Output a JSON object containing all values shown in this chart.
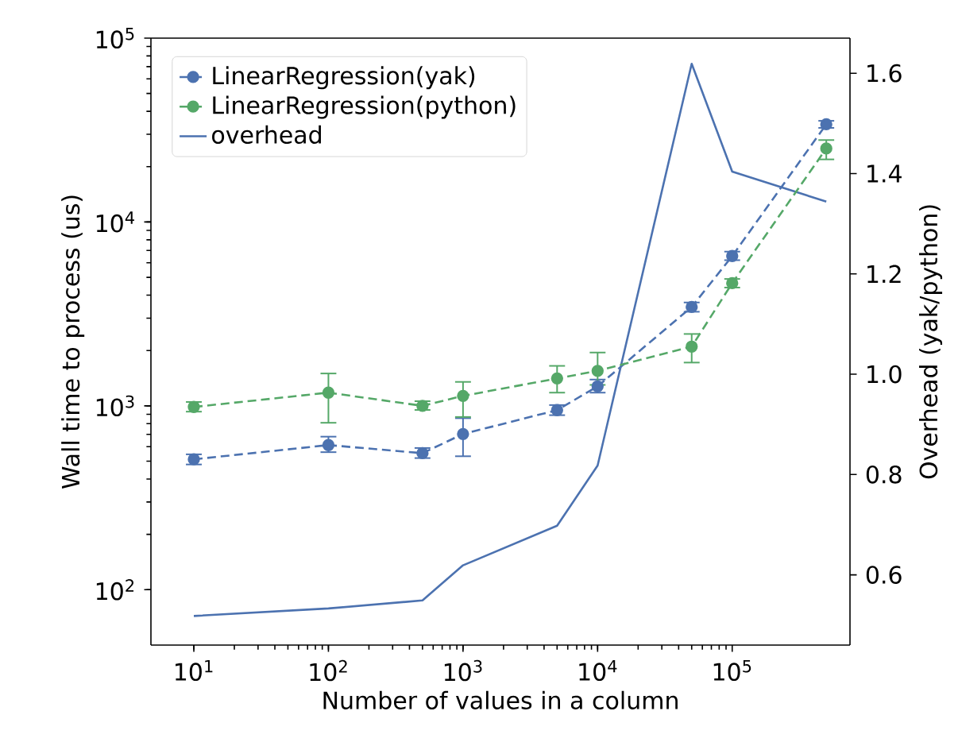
{
  "chart_data": {
    "type": "line",
    "xlabel": "Number of values in a column",
    "ylabel": "Wall time to process (us)",
    "y2label": "Overhead (yak/python)",
    "log": "xy",
    "legend": "top left",
    "xlim": [
      4.8,
      750000
    ],
    "xticks": [
      {
        "value": 10,
        "label": "10$^{1}$"
      },
      {
        "value": 100,
        "label": "10$^{2}$"
      },
      {
        "value": 1000,
        "label": "10$^{3}$"
      },
      {
        "value": 10000,
        "label": "10$^{4}$"
      },
      {
        "value": 100000,
        "label": "10$^{5}$"
      }
    ],
    "ylim": [
      50,
      100000
    ],
    "yticks": [
      {
        "value": 100,
        "label": "10$^{2}$"
      },
      {
        "value": 1000,
        "label": "10$^{3}$"
      },
      {
        "value": 10000,
        "label": "10$^{4}$"
      },
      {
        "value": 100000,
        "label": "10$^{5}$"
      }
    ],
    "y2lim": [
      0.46,
      1.67
    ],
    "y2ticks": [
      {
        "value": 0.6,
        "label": "0.6"
      },
      {
        "value": 0.8,
        "label": "0.8"
      },
      {
        "value": 1.0,
        "label": "1.0"
      },
      {
        "value": 1.2,
        "label": "1.2"
      },
      {
        "value": 1.4,
        "label": "1.4"
      },
      {
        "value": 1.6,
        "label": "1.6"
      }
    ],
    "x": [
      10,
      100,
      500,
      1000,
      5000,
      10000,
      50000,
      100000,
      500000
    ],
    "series": [
      {
        "name": "LinearRegression(yak)",
        "color": "#4c72b0",
        "line_style": "dashed",
        "marker": "circle",
        "values": [
          512,
          612,
          553,
          703,
          948,
          1277,
          3450,
          6530,
          34000
        ],
        "errors": [
          [
            480,
            545
          ],
          [
            560,
            680
          ],
          [
            520,
            590
          ],
          [
            532,
            857
          ],
          [
            890,
            1010
          ],
          [
            1180,
            1390
          ],
          [
            3250,
            3650
          ],
          [
            6200,
            6900
          ],
          [
            32500,
            35500
          ]
        ]
      },
      {
        "name": "LinearRegression(python)",
        "color": "#55a868",
        "line_style": "dashed",
        "marker": "circle",
        "values": [
          986,
          1180,
          1000,
          1133,
          1410,
          1550,
          2100,
          4650,
          25100
        ],
        "errors": [
          [
            930,
            1050
          ],
          [
            809,
            1500
          ],
          [
            950,
            1060
          ],
          [
            870,
            1350
          ],
          [
            1180,
            1650
          ],
          [
            1300,
            1950
          ],
          [
            1720,
            2460
          ],
          [
            4400,
            4900
          ],
          [
            21900,
            27900
          ]
        ]
      },
      {
        "name": "overhead",
        "color": "#4c72b0",
        "type": "line",
        "axis": "y2",
        "line_style": "solid",
        "marker": "none",
        "values": [
          0.518,
          0.533,
          0.549,
          0.619,
          0.698,
          0.818,
          1.619,
          1.404,
          1.344
        ]
      }
    ]
  }
}
